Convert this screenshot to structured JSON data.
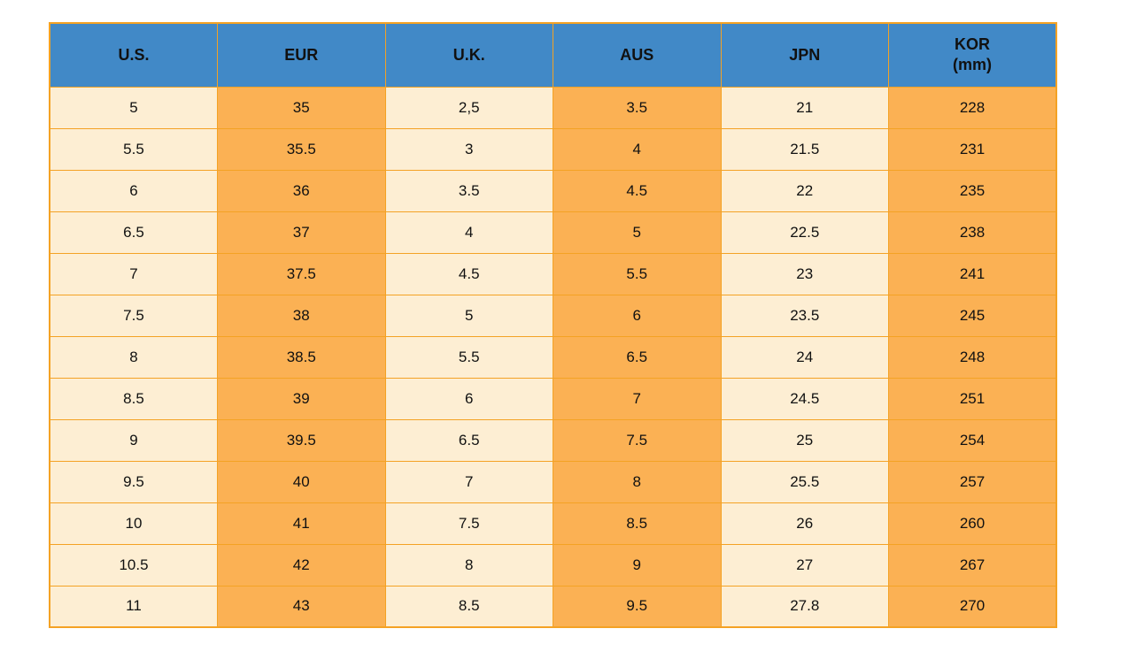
{
  "colors": {
    "header_bg": "#4189C7",
    "cell_light": "#FDEED3",
    "cell_orange": "#FBB154",
    "grid_border": "#F4A224",
    "text": "#111111",
    "page_bg": "#FFFFFF"
  },
  "chart_data": {
    "type": "table",
    "columns": [
      {
        "key": "us",
        "label": "U.S."
      },
      {
        "key": "eur",
        "label": "EUR"
      },
      {
        "key": "uk",
        "label": "U.K."
      },
      {
        "key": "aus",
        "label": "AUS"
      },
      {
        "key": "jpn",
        "label": "JPN"
      },
      {
        "key": "kor",
        "label": "KOR",
        "sublabel": "(mm)"
      }
    ],
    "rows": [
      [
        "5",
        "35",
        "2,5",
        "3.5",
        "21",
        "228"
      ],
      [
        "5.5",
        "35.5",
        "3",
        "4",
        "21.5",
        "231"
      ],
      [
        "6",
        "36",
        "3.5",
        "4.5",
        "22",
        "235"
      ],
      [
        "6.5",
        "37",
        "4",
        "5",
        "22.5",
        "238"
      ],
      [
        "7",
        "37.5",
        "4.5",
        "5.5",
        "23",
        "241"
      ],
      [
        "7.5",
        "38",
        "5",
        "6",
        "23.5",
        "245"
      ],
      [
        "8",
        "38.5",
        "5.5",
        "6.5",
        "24",
        "248"
      ],
      [
        "8.5",
        "39",
        "6",
        "7",
        "24.5",
        "251"
      ],
      [
        "9",
        "39.5",
        "6.5",
        "7.5",
        "25",
        "254"
      ],
      [
        "9.5",
        "40",
        "7",
        "8",
        "25.5",
        "257"
      ],
      [
        "10",
        "41",
        "7.5",
        "8.5",
        "26",
        "260"
      ],
      [
        "10.5",
        "42",
        "8",
        "9",
        "27",
        "267"
      ],
      [
        "11",
        "43",
        "8.5",
        "9.5",
        "27.8",
        "270"
      ]
    ],
    "layout": {
      "column_color_pattern": [
        "light",
        "orange",
        "light",
        "orange",
        "light",
        "orange"
      ],
      "grid": true
    }
  }
}
